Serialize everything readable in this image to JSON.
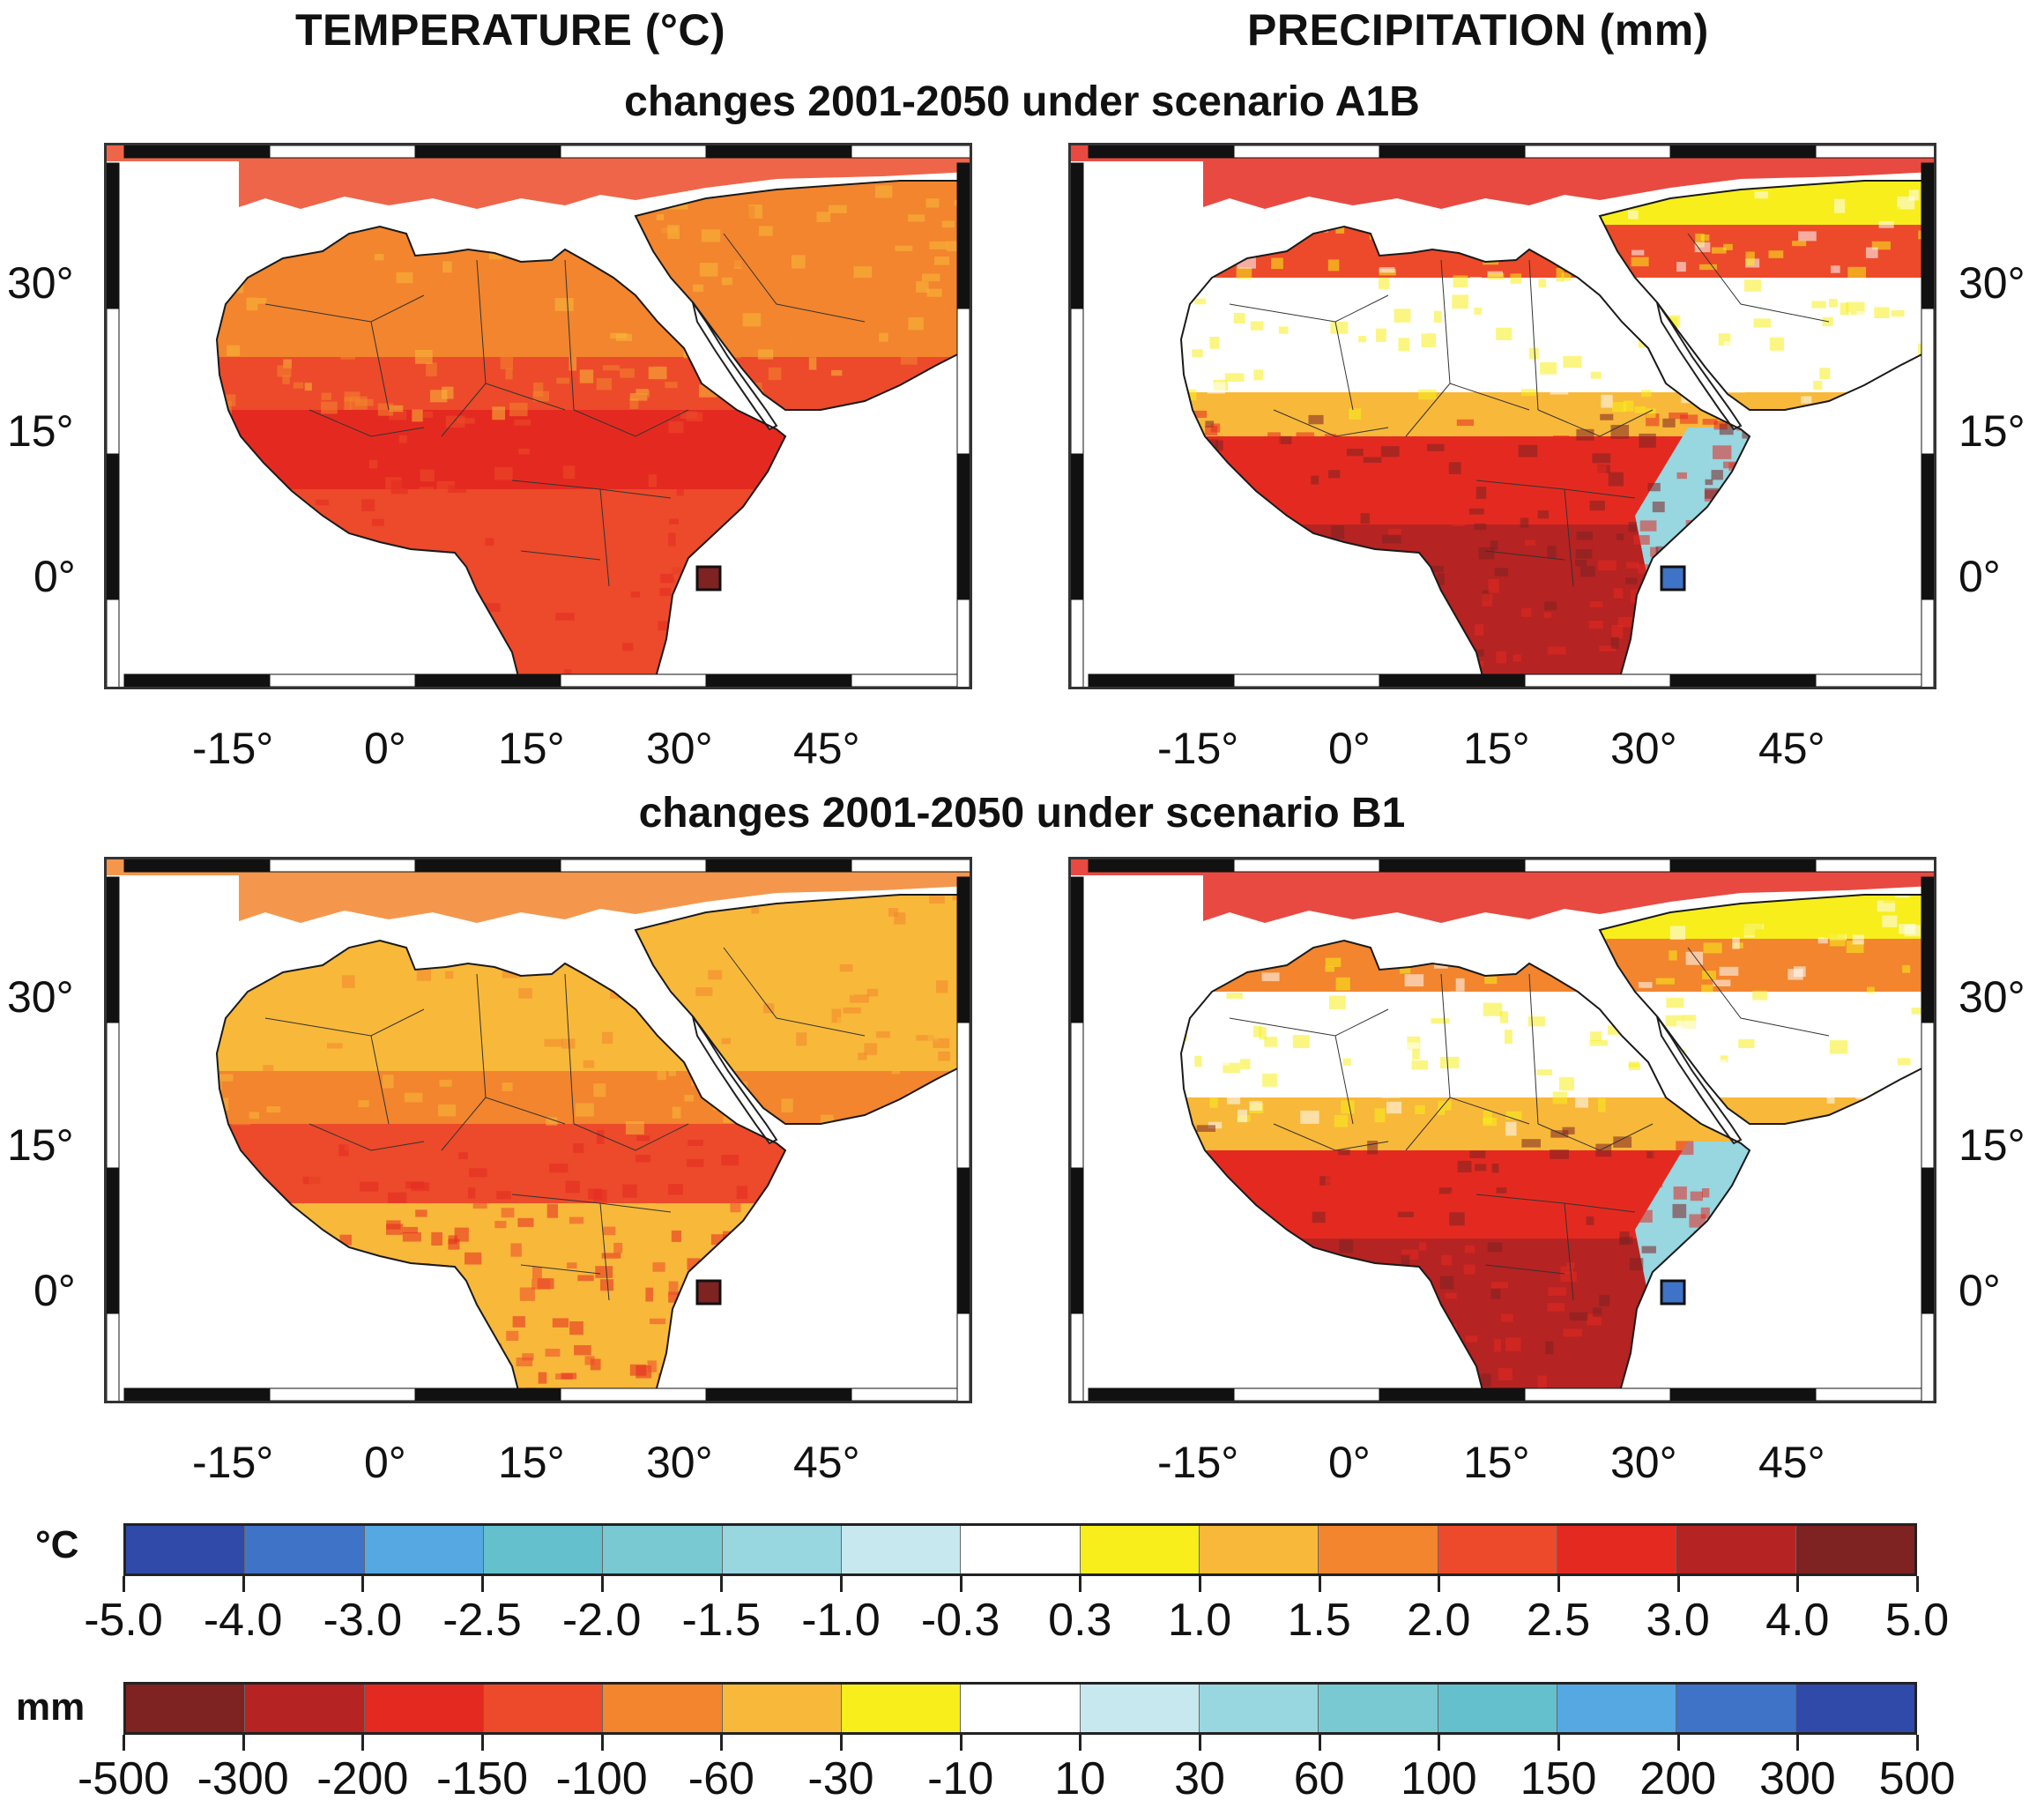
{
  "titles": {
    "temperature": "TEMPERATURE (°C)",
    "precipitation": "PRECIPITATION (mm)",
    "scenario_a1b": "changes 2001-2050 under scenario A1B",
    "scenario_b1": "changes 2001-2050 under scenario B1"
  },
  "axes": {
    "lon_labels": [
      "-15°",
      "0°",
      "15°",
      "30°",
      "45°"
    ],
    "lat_labels": [
      "30°",
      "15°",
      "0°"
    ]
  },
  "panels": [
    {
      "name": "temperature-a1b",
      "variable": "temperature",
      "scenario": "A1B"
    },
    {
      "name": "precipitation-a1b",
      "variable": "precipitation",
      "scenario": "A1B"
    },
    {
      "name": "temperature-b1",
      "variable": "temperature",
      "scenario": "B1"
    },
    {
      "name": "precipitation-b1",
      "variable": "precipitation",
      "scenario": "B1"
    }
  ],
  "colorbars": {
    "temperature": {
      "unit": "°C",
      "labels": [
        "-5.0",
        "-4.0",
        "-3.0",
        "-2.5",
        "-2.0",
        "-1.5",
        "-1.0",
        "-0.3",
        "0.3",
        "1.0",
        "1.5",
        "2.0",
        "2.5",
        "3.0",
        "4.0",
        "5.0"
      ],
      "colors": [
        "#2f4aa8",
        "#3f73c8",
        "#55a8e2",
        "#63c0cc",
        "#78c9d2",
        "#98d6e0",
        "#c8e8ef",
        "#ffffff",
        "#f7ee1c",
        "#f8b83a",
        "#f2852e",
        "#ec4a2a",
        "#e42a20",
        "#b52322",
        "#7e2222"
      ]
    },
    "precipitation": {
      "unit": "mm",
      "labels": [
        "-500",
        "-300",
        "-200",
        "-150",
        "-100",
        "-60",
        "-30",
        "-10",
        "10",
        "30",
        "60",
        "100",
        "150",
        "200",
        "300",
        "500"
      ],
      "colors": [
        "#7e2222",
        "#b52322",
        "#e42a20",
        "#ec4a2a",
        "#f2852e",
        "#f8b83a",
        "#f7ee1c",
        "#ffffff",
        "#c8e8ef",
        "#98d6e0",
        "#78c9d2",
        "#63c0cc",
        "#55a8e2",
        "#3f73c8",
        "#2f4aa8"
      ]
    }
  }
}
